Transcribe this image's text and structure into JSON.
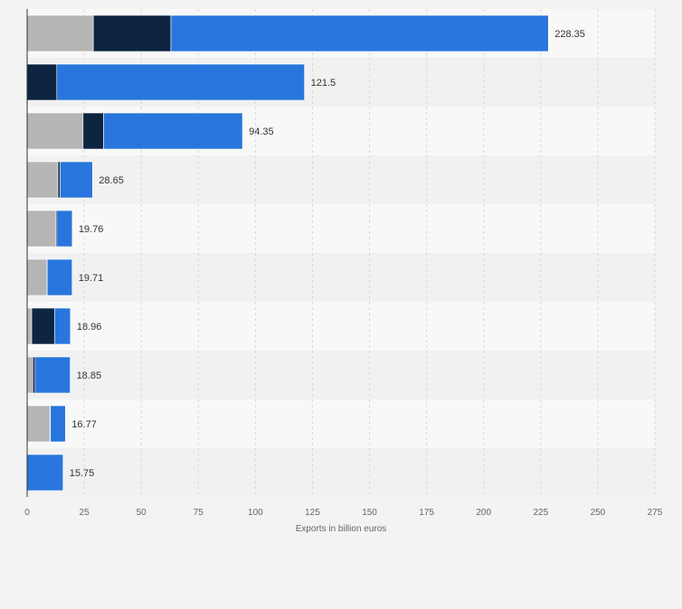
{
  "chart_data": {
    "type": "bar",
    "orientation": "horizontal",
    "stacked": true,
    "title": "",
    "xlabel": "Exports in billion euros",
    "ylabel": "",
    "xlim": [
      0,
      275
    ],
    "xticks": [
      "0",
      "25",
      "50",
      "75",
      "100",
      "125",
      "150",
      "175",
      "200",
      "225",
      "250",
      "275"
    ],
    "grid": true,
    "legend": "none",
    "categories": [
      "",
      "",
      "",
      "",
      "",
      "",
      "",
      "",
      "",
      ""
    ],
    "totals": [
      228.35,
      121.5,
      94.35,
      28.65,
      19.76,
      19.71,
      18.96,
      18.85,
      16.77,
      15.75
    ],
    "total_labels": [
      "228.35",
      "121.5",
      "94.35",
      "28.65",
      "19.76",
      "19.71",
      "18.96",
      "18.85",
      "16.77",
      "15.75"
    ],
    "series": [
      {
        "color": "#b5b5b5",
        "values": [
          29.0,
          0.0,
          24.5,
          13.5,
          12.5,
          8.5,
          2.0,
          2.5,
          10.0,
          0.0
        ]
      },
      {
        "color": "#0e2541",
        "values": [
          34.0,
          13.0,
          9.0,
          1.0,
          0.5,
          0.3,
          10.0,
          1.0,
          0.2,
          0.0
        ]
      },
      {
        "color": "#2876dd",
        "values": [
          165.35,
          108.5,
          60.85,
          14.15,
          6.76,
          10.91,
          6.96,
          15.35,
          6.57,
          15.75
        ]
      }
    ],
    "colors": {
      "background": "#f3f3f3",
      "grid": "#d9d9d9",
      "band_light": "#f8f8f8",
      "band_dark": "#f1f1f1",
      "axis": "#333333"
    }
  }
}
